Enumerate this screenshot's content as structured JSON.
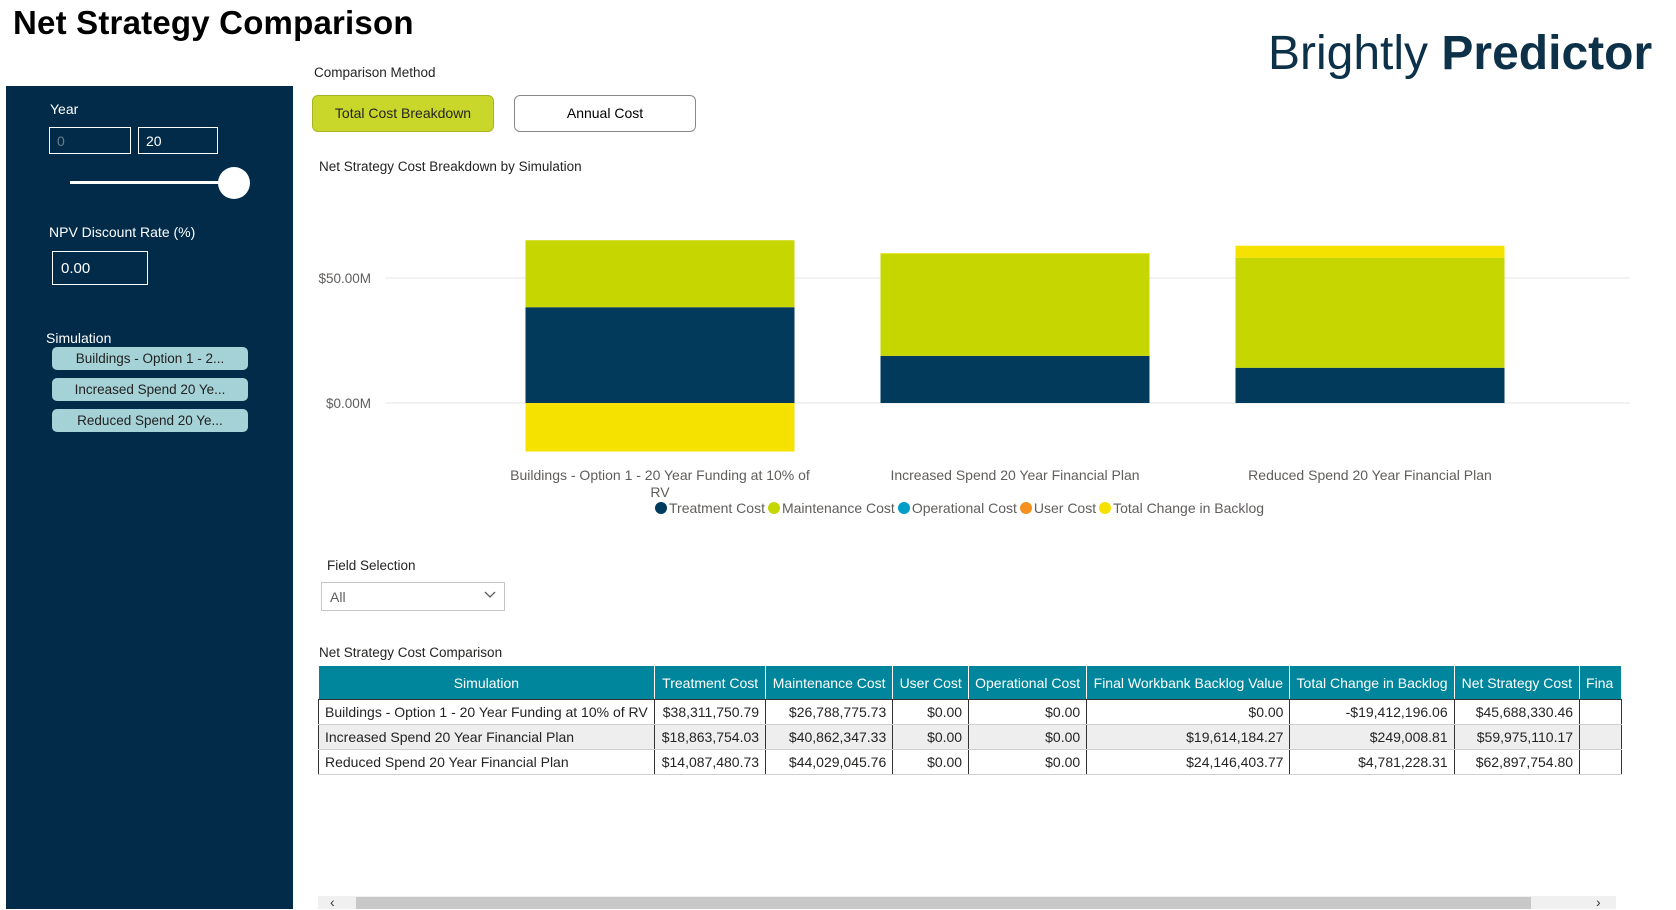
{
  "page": {
    "title": "Net Strategy Comparison"
  },
  "brand": {
    "part1": "Brightly",
    "part2": "Predictor"
  },
  "sidebar": {
    "year_label": "Year",
    "year_min": "0",
    "year_max": "20",
    "slider_value": 1.0,
    "npv_label": "NPV Discount Rate (%)",
    "npv_value": "0.00",
    "simulation_label": "Simulation",
    "simulations": [
      "Buildings - Option 1 - 2...",
      "Increased Spend 20 Ye...",
      "Reduced Spend 20 Ye..."
    ]
  },
  "comparison": {
    "label": "Comparison Method",
    "buttons": [
      "Total Cost Breakdown",
      "Annual Cost"
    ],
    "active": 0
  },
  "chart_title": "Net Strategy Cost Breakdown by Simulation",
  "chart_data": {
    "type": "bar",
    "stacked": true,
    "categories": [
      [
        "Buildings - Option 1 - 20 Year Funding at 10% of",
        "RV"
      ],
      [
        "Increased Spend 20 Year Financial Plan"
      ],
      [
        "Reduced Spend 20 Year Financial Plan"
      ]
    ],
    "series": [
      {
        "name": "Treatment Cost",
        "color": "#023a5c",
        "values": [
          38.31,
          18.86,
          14.09
        ]
      },
      {
        "name": "Maintenance Cost",
        "color": "#c5d600",
        "values": [
          26.79,
          40.86,
          44.03
        ]
      },
      {
        "name": "Operational Cost",
        "color": "#009ec8",
        "values": [
          0,
          0,
          0
        ]
      },
      {
        "name": "User Cost",
        "color": "#f5901e",
        "values": [
          0,
          0,
          0
        ]
      },
      {
        "name": "Total Change in Backlog",
        "color": "#f6e200",
        "values": [
          -19.41,
          0.25,
          4.78
        ]
      }
    ],
    "ytick_labels": [
      "$0.00M",
      "$50.00M"
    ],
    "ytick_values": [
      0,
      50
    ],
    "ylim": [
      -20,
      70
    ],
    "grid": true,
    "legend_position": "bottom"
  },
  "field_selection": {
    "label": "Field Selection",
    "value": "All"
  },
  "table": {
    "title": "Net Strategy Cost Comparison",
    "columns": [
      "Simulation",
      "Treatment Cost",
      "Maintenance Cost",
      "User Cost",
      "Operational Cost",
      "Final Workbank Backlog Value",
      "Total Change in Backlog",
      "Net Strategy Cost",
      "Fina"
    ],
    "rows": [
      [
        "Buildings - Option 1 - 20 Year Funding at 10% of RV",
        "$38,311,750.79",
        "$26,788,775.73",
        "$0.00",
        "$0.00",
        "$0.00",
        "-$19,412,196.06",
        "$45,688,330.46",
        ""
      ],
      [
        "Increased Spend 20 Year Financial Plan",
        "$18,863,754.03",
        "$40,862,347.33",
        "$0.00",
        "$0.00",
        "$19,614,184.27",
        "$249,008.81",
        "$59,975,110.17",
        ""
      ],
      [
        "Reduced Spend 20 Year Financial Plan",
        "$14,087,480.73",
        "$44,029,045.76",
        "$0.00",
        "$0.00",
        "$24,146,403.77",
        "$4,781,228.31",
        "$62,897,754.80",
        ""
      ]
    ]
  }
}
